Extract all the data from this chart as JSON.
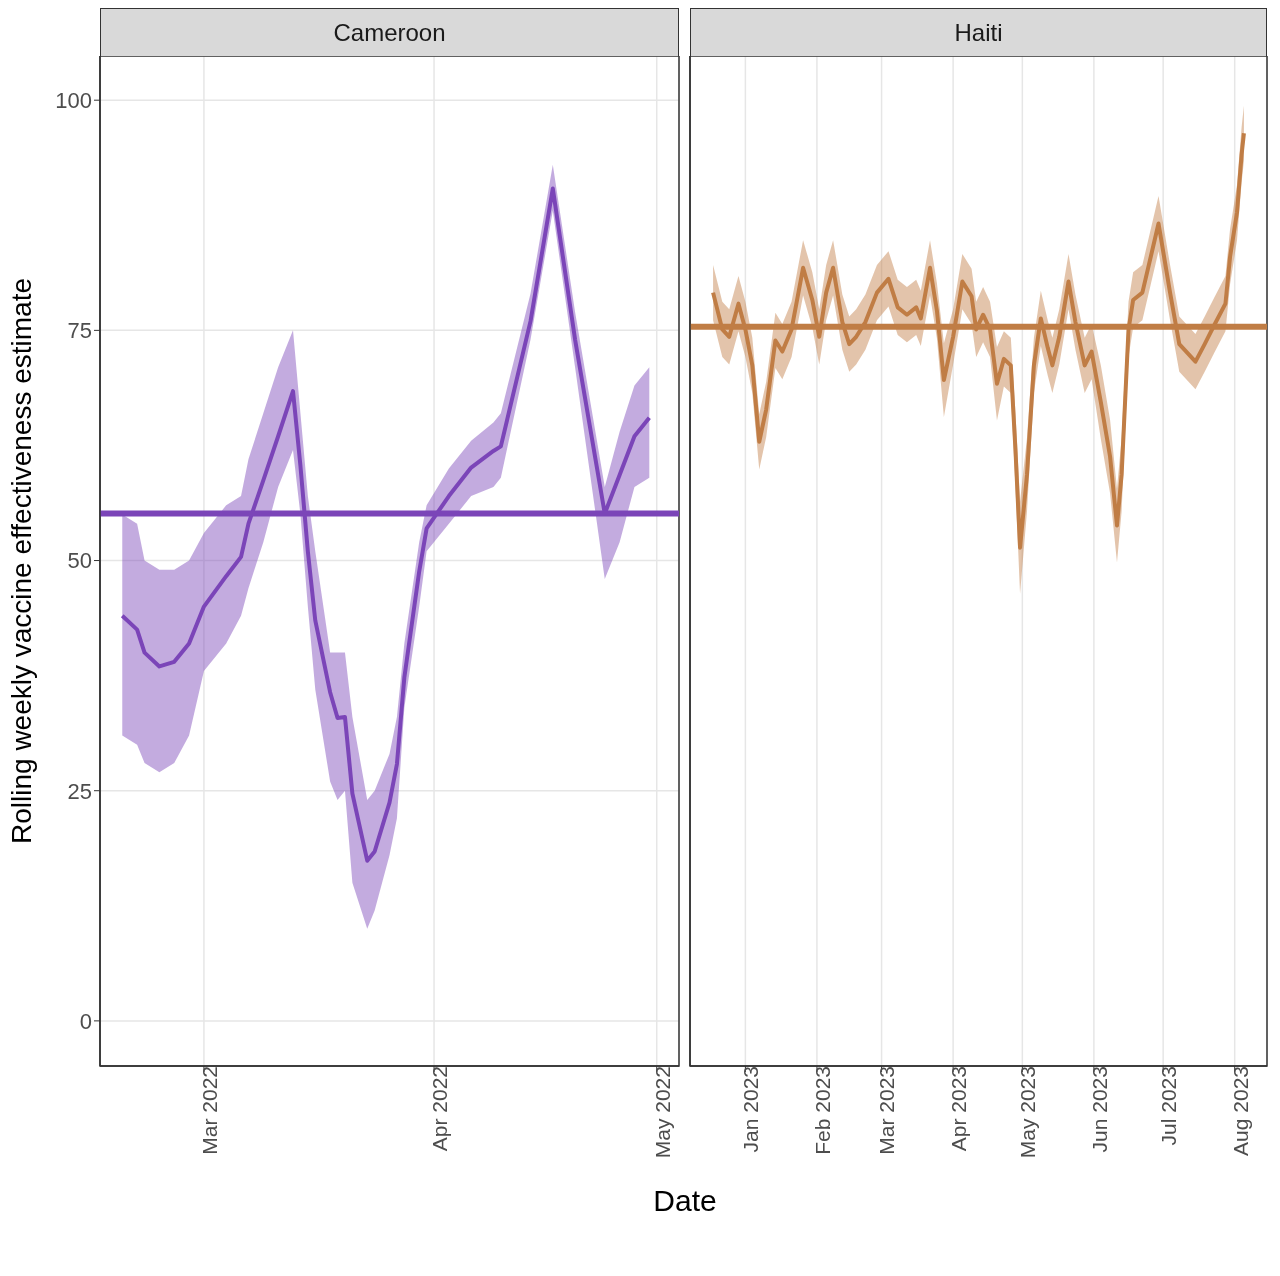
{
  "chart_data": [
    {
      "type": "line",
      "title": "Cameroon",
      "ylabel": "Rolling weekly vaccine effectiveness estimate",
      "xlabel": "Date",
      "xlim": [
        "2022-02-15",
        "2022-05-04"
      ],
      "xticks": [
        {
          "value": "2022-03-01",
          "label": "Mar 2022"
        },
        {
          "value": "2022-04-01",
          "label": "Apr 2022"
        },
        {
          "value": "2022-05-01",
          "label": "May 2022"
        }
      ],
      "ylim": [
        -4.9,
        104.8
      ],
      "yticks": [
        0,
        25,
        50,
        75,
        100
      ],
      "grid": true,
      "legend": false,
      "line_style": "solid",
      "marker": "none",
      "series": [
        {
          "color": "#7b45b8",
          "x": [
            "2022-02-18",
            "2022-02-20",
            "2022-02-21",
            "2022-02-23",
            "2022-02-25",
            "2022-02-27",
            "2022-03-01",
            "2022-03-04",
            "2022-03-06",
            "2022-03-07",
            "2022-03-09",
            "2022-03-11",
            "2022-03-13",
            "2022-03-14",
            "2022-03-15",
            "2022-03-16",
            "2022-03-18",
            "2022-03-19",
            "2022-03-20",
            "2022-03-21",
            "2022-03-23",
            "2022-03-24",
            "2022-03-26",
            "2022-03-27",
            "2022-03-28",
            "2022-03-30",
            "2022-03-31",
            "2022-04-03",
            "2022-04-06",
            "2022-04-09",
            "2022-04-10",
            "2022-04-14",
            "2022-04-17",
            "2022-04-20",
            "2022-04-24",
            "2022-04-26",
            "2022-04-28",
            "2022-04-30"
          ],
          "values": [
            44,
            42.5,
            40,
            38.5,
            39,
            41,
            45,
            48.3,
            50.4,
            54,
            58.7,
            63.5,
            68.4,
            60.3,
            51,
            43.5,
            35.7,
            32.9,
            33,
            24.7,
            17.4,
            18.4,
            23.7,
            27.9,
            37.3,
            48.8,
            53.5,
            57,
            60.1,
            61.9,
            62.4,
            76,
            90.4,
            74,
            55.1,
            59.3,
            63.5,
            65.5
          ],
          "lower": [
            31,
            30,
            28,
            27,
            28,
            31,
            38,
            41,
            44,
            47,
            52,
            58,
            62,
            55,
            45,
            36,
            26,
            24,
            25,
            15,
            10,
            12,
            18,
            22,
            34,
            45,
            51,
            54,
            57,
            58,
            59,
            74,
            88,
            71,
            48,
            52,
            58,
            59
          ],
          "upper": [
            55,
            54,
            50,
            49,
            49,
            50,
            53,
            56,
            57,
            61,
            66,
            71,
            75,
            66,
            57,
            51,
            40,
            40,
            40,
            33,
            24,
            25,
            29,
            33,
            41,
            52,
            56,
            60,
            63,
            65,
            66,
            79,
            93,
            77,
            58,
            64,
            69,
            71
          ]
        }
      ],
      "ref_lines": [
        {
          "axis": "y",
          "value": 55.1,
          "color": "#7b45b8"
        }
      ]
    },
    {
      "type": "line",
      "title": "Haiti",
      "xlim": [
        "2022-12-08",
        "2023-08-15"
      ],
      "xticks": [
        {
          "value": "2023-01-01",
          "label": "Jan 2023"
        },
        {
          "value": "2023-02-01",
          "label": "Feb 2023"
        },
        {
          "value": "2023-03-01",
          "label": "Mar 2023"
        },
        {
          "value": "2023-04-01",
          "label": "Apr 2023"
        },
        {
          "value": "2023-05-01",
          "label": "May 2023"
        },
        {
          "value": "2023-06-01",
          "label": "Jun 2023"
        },
        {
          "value": "2023-07-01",
          "label": "Jul 2023"
        },
        {
          "value": "2023-08-01",
          "label": "Aug 2023"
        }
      ],
      "ylim": [
        -4.9,
        104.8
      ],
      "yticks": [
        0,
        25,
        50,
        75,
        100
      ],
      "tick_labels": "x",
      "grid": true,
      "legend": false,
      "line_style": "solid",
      "marker": "none",
      "series": [
        {
          "color": "#c07d45",
          "x": [
            "2022-12-18",
            "2022-12-22",
            "2022-12-25",
            "2022-12-29",
            "2023-01-01",
            "2023-01-04",
            "2023-01-07",
            "2023-01-10",
            "2023-01-14",
            "2023-01-17",
            "2023-01-21",
            "2023-01-26",
            "2023-01-30",
            "2023-02-02",
            "2023-02-05",
            "2023-02-08",
            "2023-02-12",
            "2023-02-15",
            "2023-02-18",
            "2023-02-22",
            "2023-02-27",
            "2023-03-04",
            "2023-03-08",
            "2023-03-12",
            "2023-03-16",
            "2023-03-18",
            "2023-03-22",
            "2023-03-25",
            "2023-03-28",
            "2023-04-01",
            "2023-04-05",
            "2023-04-09",
            "2023-04-11",
            "2023-04-14",
            "2023-04-17",
            "2023-04-20",
            "2023-04-23",
            "2023-04-26",
            "2023-04-28",
            "2023-04-30",
            "2023-05-03",
            "2023-05-06",
            "2023-05-09",
            "2023-05-12",
            "2023-05-14",
            "2023-05-17",
            "2023-05-21",
            "2023-05-24",
            "2023-05-28",
            "2023-05-31",
            "2023-06-04",
            "2023-06-08",
            "2023-06-11",
            "2023-06-13",
            "2023-06-16",
            "2023-06-18",
            "2023-06-22",
            "2023-06-29",
            "2023-07-04",
            "2023-07-08",
            "2023-07-15",
            "2023-07-19",
            "2023-07-23",
            "2023-07-28",
            "2023-07-30",
            "2023-08-02",
            "2023-08-04",
            "2023-08-05"
          ],
          "values": [
            79.1,
            75.1,
            74.3,
            77.9,
            75.1,
            71.2,
            62.9,
            66.4,
            73.9,
            72.7,
            75.1,
            81.8,
            78.3,
            74.3,
            79.1,
            81.8,
            75.9,
            73.5,
            74.3,
            75.9,
            79.1,
            80.6,
            77.5,
            76.7,
            77.5,
            76.3,
            81.8,
            77.1,
            69.6,
            74.3,
            80.3,
            78.7,
            75.1,
            76.7,
            75.1,
            69.2,
            71.9,
            71.2,
            62.1,
            51.4,
            59.3,
            71.2,
            76.3,
            73.1,
            71.2,
            74.3,
            80.3,
            75.9,
            71.2,
            72.7,
            67.2,
            61.3,
            53.8,
            59.3,
            75.1,
            78.3,
            79.1,
            86.6,
            79.1,
            73.5,
            71.6,
            73.5,
            75.5,
            77.9,
            83,
            87.8,
            94.1,
            96.4
          ],
          "lower": [
            76.1,
            72.1,
            71.3,
            74.9,
            72.1,
            68.2,
            59.9,
            63.4,
            70.9,
            69.7,
            72.1,
            78.8,
            75.3,
            71.3,
            76.1,
            78.8,
            72.9,
            70.5,
            71.3,
            72.9,
            76.1,
            77.6,
            74.5,
            73.7,
            74.5,
            73.3,
            78.8,
            74.1,
            65.6,
            71.3,
            77.3,
            75.7,
            72.1,
            73.7,
            72.1,
            65.2,
            68.9,
            68.2,
            58.1,
            46.4,
            55.3,
            68.2,
            73.3,
            70.1,
            68.2,
            71.3,
            77.3,
            72.9,
            68.2,
            69.7,
            63.2,
            57.3,
            49.8,
            55.3,
            72.1,
            75.3,
            76.1,
            83.6,
            76.1,
            70.5,
            68.6,
            70.5,
            72.5,
            74.9,
            80,
            84.8,
            91.1,
            93.4
          ],
          "upper": [
            82.1,
            78.1,
            77.3,
            80.9,
            78.1,
            74.2,
            65.9,
            69.4,
            76.9,
            75.7,
            78.1,
            84.8,
            81.3,
            77.3,
            82.1,
            84.8,
            78.9,
            76.5,
            77.3,
            78.9,
            82.1,
            83.6,
            80.5,
            79.7,
            80.5,
            79.3,
            84.8,
            80.1,
            73.6,
            77.3,
            83.3,
            81.7,
            78.1,
            79.7,
            78.1,
            73.2,
            74.9,
            74.2,
            66.1,
            56.4,
            63.3,
            74.2,
            79.3,
            76.1,
            74.2,
            77.3,
            83.3,
            78.9,
            74.2,
            75.7,
            71.2,
            65.3,
            57.8,
            63.3,
            78.1,
            81.3,
            82.1,
            89.6,
            82.1,
            76.5,
            74.6,
            76.5,
            78.5,
            80.9,
            86,
            90.8,
            97.1,
            99.4
          ]
        }
      ],
      "ref_lines": [
        {
          "axis": "y",
          "value": 75.4,
          "color": "#c07d45"
        }
      ]
    }
  ]
}
